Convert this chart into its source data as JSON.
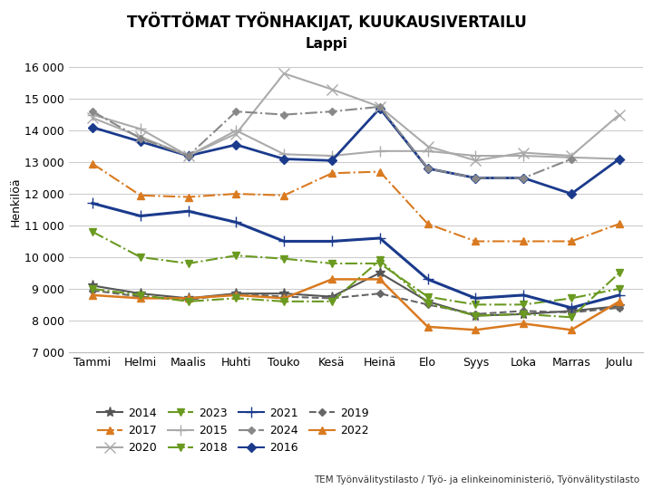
{
  "title": "TYÖTTÖMAT TYÖNHAKIJAT, KUUKAUSIVERTAILU",
  "subtitle": "Lappi",
  "ylabel": "Henkilöä",
  "xlabel_note": "TEM Työnvälitystilasto / Työ- ja elinkeinoministeriö, Työnvälitystilasto",
  "months": [
    "Tammi",
    "Helmi",
    "Maalis",
    "Huhti",
    "Touko",
    "Kesä",
    "Heinä",
    "Elo",
    "Syys",
    "Loka",
    "Marras",
    "Joulu"
  ],
  "ylim": [
    7000,
    16500
  ],
  "yticks": [
    7000,
    8000,
    9000,
    10000,
    11000,
    12000,
    13000,
    14000,
    15000,
    16000
  ],
  "series": {
    "2014": {
      "data": [
        9100,
        8850,
        8700,
        8850,
        8850,
        8750,
        9500,
        8600,
        8150,
        8200,
        8300,
        8450
      ],
      "color": "#555555",
      "linestyle": "-",
      "marker": "*",
      "markersize": 8,
      "linewidth": 1.5
    },
    "2015": {
      "data": [
        14500,
        14050,
        13200,
        14000,
        13250,
        13200,
        13350,
        13350,
        13200,
        13200,
        13150,
        13100
      ],
      "color": "#aaaaaa",
      "linestyle": "-",
      "marker": "+",
      "markersize": 8,
      "linewidth": 1.5
    },
    "2016": {
      "data": [
        14100,
        13650,
        13200,
        13550,
        13100,
        13050,
        14700,
        12800,
        12500,
        12500,
        12000,
        13100
      ],
      "color": "#1a3a8c",
      "linestyle": "-",
      "marker": "D",
      "markersize": 5,
      "linewidth": 2.0
    },
    "2017": {
      "data": [
        12950,
        11950,
        11900,
        12000,
        11950,
        12650,
        12700,
        11050,
        10500,
        10500,
        10500,
        11050
      ],
      "color": "#d97a20",
      "linestyle": "-.",
      "marker": "^",
      "markersize": 6,
      "linewidth": 1.5
    },
    "2018": {
      "data": [
        10800,
        10000,
        9800,
        10050,
        9950,
        9800,
        9800,
        8750,
        8500,
        8500,
        8700,
        9000
      ],
      "color": "#6a9a20",
      "linestyle": "-.",
      "marker": "v",
      "markersize": 6,
      "linewidth": 1.5
    },
    "2019": {
      "data": [
        8950,
        8750,
        8650,
        8850,
        8750,
        8700,
        8850,
        8500,
        8200,
        8300,
        8250,
        8400
      ],
      "color": "#666666",
      "linestyle": "--",
      "marker": "D",
      "markersize": 4,
      "linewidth": 1.5
    },
    "2020": {
      "data": [
        14400,
        13800,
        13200,
        13900,
        15800,
        15300,
        14750,
        13500,
        13050,
        13300,
        13200,
        14500
      ],
      "color": "#aaaaaa",
      "linestyle": "-",
      "marker": "x",
      "markersize": 8,
      "linewidth": 1.5
    },
    "2021": {
      "data": [
        11700,
        11300,
        11450,
        11100,
        10500,
        10500,
        10600,
        9300,
        8700,
        8800,
        8400,
        8800
      ],
      "color": "#1a3a8c",
      "linestyle": "-",
      "marker": "+",
      "markersize": 8,
      "linewidth": 2.2
    },
    "2022": {
      "data": [
        8800,
        8700,
        8700,
        8800,
        8700,
        9300,
        9300,
        7800,
        7700,
        7900,
        7700,
        8600
      ],
      "color": "#d97a20",
      "linestyle": "-",
      "marker": "^",
      "markersize": 6,
      "linewidth": 1.8
    },
    "2023": {
      "data": [
        9000,
        8800,
        8600,
        8700,
        8600,
        8600,
        9900,
        8550,
        8150,
        8200,
        8100,
        9500
      ],
      "color": "#6a9a20",
      "linestyle": "-.",
      "marker": "v",
      "markersize": 6,
      "linewidth": 1.5
    },
    "2024": {
      "data": [
        14600,
        13750,
        13200,
        14600,
        14500,
        14600,
        14750,
        12800,
        12500,
        12500,
        13100,
        null
      ],
      "color": "#888888",
      "linestyle": "-.",
      "marker": "D",
      "markersize": 4,
      "linewidth": 1.5
    }
  },
  "legend_order": [
    [
      "2014",
      "#555555",
      "-",
      "*",
      8
    ],
    [
      "2017",
      "#d97a20",
      "-.",
      "^",
      6
    ],
    [
      "2020",
      "#aaaaaa",
      "-",
      "x",
      8
    ],
    [
      "2023",
      "#6a9a20",
      "-.",
      "v",
      6
    ],
    [
      "2015",
      "#aaaaaa",
      "-",
      "+",
      8
    ],
    [
      "2018",
      "#6a9a20",
      "-.",
      "v",
      6
    ],
    [
      "2021",
      "#1a3a8c",
      "-",
      "+",
      8
    ],
    [
      "2024",
      "#888888",
      "-.",
      "D",
      4
    ],
    [
      "2016",
      "#1a3a8c",
      "-",
      "D",
      5
    ],
    [
      "2019",
      "#666666",
      "--",
      "D",
      4
    ],
    [
      "2022",
      "#d97a20",
      "-",
      "^",
      6
    ]
  ],
  "background_color": "#ffffff",
  "grid_color": "#cccccc"
}
